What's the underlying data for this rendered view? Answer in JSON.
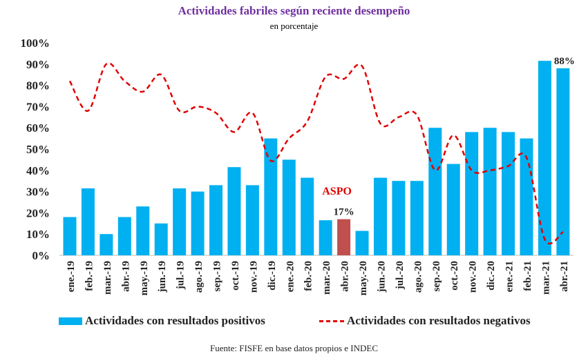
{
  "chart_data": {
    "type": "bar",
    "title": "Actividades fabriles según reciente desempeño",
    "subtitle": "en porcentaje",
    "ylim": [
      0,
      100
    ],
    "yticks": [
      "0%",
      "10%",
      "20%",
      "30%",
      "40%",
      "50%",
      "60%",
      "70%",
      "80%",
      "90%",
      "100%"
    ],
    "categories": [
      "ene.-19",
      "feb.-19",
      "mar.-19",
      "abr.-19",
      "may.-19",
      "jun.-19",
      "jul.-19",
      "ago.-19",
      "sep.-19",
      "oct.-19",
      "nov.-19",
      "dic.-19",
      "ene.-20",
      "feb.-20",
      "mar.-20",
      "abr.-20",
      "may.-20",
      "jun.-20",
      "jul.-20",
      "ago.-20",
      "sep.-20",
      "oct.-20",
      "nov.-20",
      "dic.-20",
      "ene.-21",
      "feb.-21",
      "mar.-21",
      "abr.-21"
    ],
    "series": [
      {
        "name": "Actividades con resultados positivos",
        "type": "bar",
        "color": "#00b0f0",
        "values": [
          18,
          31.5,
          10,
          18,
          23,
          15,
          31.5,
          30,
          33,
          41.5,
          33,
          55,
          45,
          36.5,
          16.5,
          17,
          11.5,
          36.5,
          35,
          35,
          60,
          43,
          58,
          60,
          58,
          55,
          91.5,
          88
        ]
      },
      {
        "name": "Actividades con resultados negativos",
        "type": "line",
        "style": "dashed",
        "color": "#e00000",
        "values": [
          82,
          68,
          90,
          82,
          77,
          85,
          68,
          70,
          67,
          58,
          67,
          44.5,
          55,
          63,
          84,
          83,
          89,
          62,
          65,
          66,
          40,
          56.5,
          40,
          40,
          42,
          46,
          7.5,
          11
        ]
      }
    ],
    "highlight": {
      "category": "abr.-20",
      "color": "#c0504d"
    },
    "annotations": [
      {
        "text": "ASPO",
        "color": "#e00000"
      },
      {
        "text": "17%",
        "category": "abr.-20"
      },
      {
        "text": "88%",
        "category": "abr.-21"
      }
    ],
    "legend_position": "bottom",
    "source": "Fuente: FISFE en base datos propios e INDEC"
  }
}
